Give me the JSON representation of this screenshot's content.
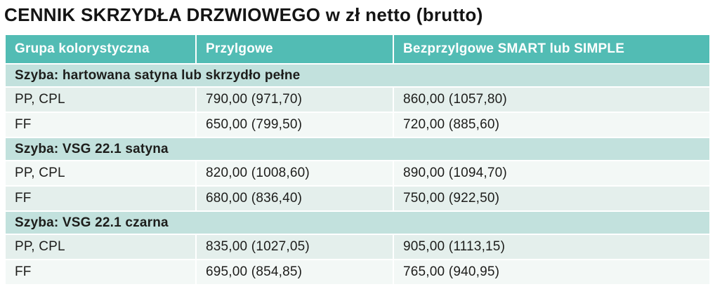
{
  "title": "CENNIK SKRZYDŁA DRZWIOWEGO w zł netto (brutto)",
  "colors": {
    "header_bg": "#52bcb4",
    "header_text": "#ffffff",
    "section_bg": "#c2e1dd",
    "row_stripe_dark": "#e4efec",
    "row_stripe_light": "#f3f8f6",
    "body_text": "#1d1d1b"
  },
  "table": {
    "columns": [
      "Grupa kolorystyczna",
      "Przylgowe",
      "Bezprzylgowe SMART lub SIMPLE"
    ],
    "sections": [
      {
        "header": "Szyba: hartowana satyna lub skrzydło pełne",
        "rows": [
          {
            "group": "PP, CPL",
            "przylgowe": "790,00 (971,70)",
            "bezprzylgowe": "860,00 (1057,80)"
          },
          {
            "group": "FF",
            "przylgowe": "650,00 (799,50)",
            "bezprzylgowe": "720,00 (885,60)"
          }
        ]
      },
      {
        "header": "Szyba: VSG 22.1 satyna",
        "rows": [
          {
            "group": "PP, CPL",
            "przylgowe": "820,00 (1008,60)",
            "bezprzylgowe": "890,00 (1094,70)"
          },
          {
            "group": "FF",
            "przylgowe": "680,00 (836,40)",
            "bezprzylgowe": "750,00 (922,50)"
          }
        ]
      },
      {
        "header": "Szyba: VSG 22.1 czarna",
        "rows": [
          {
            "group": "PP, CPL",
            "przylgowe": "835,00 (1027,05)",
            "bezprzylgowe": "905,00 (1113,15)"
          },
          {
            "group": "FF",
            "przylgowe": "695,00 (854,85)",
            "bezprzylgowe": "765,00 (940,95)"
          }
        ]
      }
    ]
  }
}
